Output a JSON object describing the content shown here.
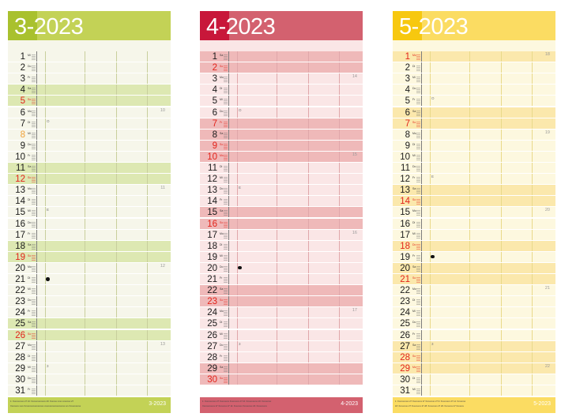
{
  "calendars": [
    {
      "title": "3-2023",
      "footer_label": "3-2023",
      "footer_fine": [
        "1: Xxxxxxxxxxx 27   16: Xxxxxxxxxxxxxx   29: Xxxxxxx xxxx xxxxxxxx 27",
        "Xxxxxxxx xxxx   Xxxxxxxxxxxxxxxxxxx xxxxxxxxxxxxxxxxxxxx xxx Xxxxxxxxxxx"
      ],
      "colors": {
        "header": "#c3d256",
        "accent": "#a9c12e",
        "row": "#f6f6ea",
        "highlight": "#dde8b2",
        "grid": "#c8cf9c"
      },
      "days": [
        {
          "n": "1",
          "a": "Mi",
          "k": "w"
        },
        {
          "n": "2",
          "a": "Do",
          "k": "w"
        },
        {
          "n": "3",
          "a": "Fr",
          "k": "w"
        },
        {
          "n": "4",
          "a": "Sa",
          "k": "hl"
        },
        {
          "n": "5",
          "a": "So",
          "k": "red"
        },
        {
          "n": "6",
          "a": "Mo",
          "k": "w"
        },
        {
          "n": "7",
          "a": "Di",
          "k": "w"
        },
        {
          "n": "8",
          "a": "Mi",
          "k": "orange"
        },
        {
          "n": "9",
          "a": "Do",
          "k": "w"
        },
        {
          "n": "10",
          "a": "Fr",
          "k": "w"
        },
        {
          "n": "11",
          "a": "Sa",
          "k": "hl"
        },
        {
          "n": "12",
          "a": "So",
          "k": "red"
        },
        {
          "n": "13",
          "a": "Mo",
          "k": "w"
        },
        {
          "n": "14",
          "a": "Di",
          "k": "w"
        },
        {
          "n": "15",
          "a": "Mi",
          "k": "w"
        },
        {
          "n": "16",
          "a": "Do",
          "k": "w"
        },
        {
          "n": "17",
          "a": "Fr",
          "k": "w"
        },
        {
          "n": "18",
          "a": "Sa",
          "k": "hl"
        },
        {
          "n": "19",
          "a": "So",
          "k": "red"
        },
        {
          "n": "20",
          "a": "Mo",
          "k": "w"
        },
        {
          "n": "21",
          "a": "Di",
          "k": "w"
        },
        {
          "n": "22",
          "a": "Mi",
          "k": "w"
        },
        {
          "n": "23",
          "a": "Do",
          "k": "w"
        },
        {
          "n": "24",
          "a": "Fr",
          "k": "w"
        },
        {
          "n": "25",
          "a": "Sa",
          "k": "hl"
        },
        {
          "n": "26",
          "a": "So",
          "k": "red"
        },
        {
          "n": "27",
          "a": "Mo",
          "k": "w"
        },
        {
          "n": "28",
          "a": "Di",
          "k": "w"
        },
        {
          "n": "29",
          "a": "Mi",
          "k": "w"
        },
        {
          "n": "30",
          "a": "Do",
          "k": "w"
        },
        {
          "n": "31",
          "a": "Fr",
          "k": "w"
        }
      ],
      "week_nums": [
        {
          "day": 6,
          "text": "10"
        },
        {
          "day": 13,
          "text": "11"
        },
        {
          "day": 20,
          "text": "12"
        },
        {
          "day": 27,
          "text": "13"
        }
      ],
      "notes": [
        {
          "day": 7,
          "text": "O"
        },
        {
          "day": 15,
          "text": "E"
        },
        {
          "day": 29,
          "text": "3"
        }
      ],
      "dot_day": 21
    },
    {
      "title": "4-2023",
      "footer_label": "4-2023",
      "footer_fine": [
        "1: Xxxxxxxxxxx 27 Xxxxxxxxx   Xxxxxxxxx 27   16: Xxxxxxxxxxx   20: Xxxxxxxxx",
        "Xxxxxxxxxxxx 27  Xxxxxxxx 27  14: Xxxxxxxx  Xxxxxxxxx   23: Xxxxxxxxxx"
      ],
      "colors": {
        "header": "#d3616f",
        "accent": "#c8173a",
        "row": "#fae6e6",
        "highlight": "#efb9b9",
        "grid": "#e0a7aa"
      },
      "days": [
        {
          "n": "1",
          "a": "Sa",
          "k": "hl"
        },
        {
          "n": "2",
          "a": "So",
          "k": "red"
        },
        {
          "n": "3",
          "a": "Mo",
          "k": "w"
        },
        {
          "n": "4",
          "a": "Di",
          "k": "w"
        },
        {
          "n": "5",
          "a": "Mi",
          "k": "w"
        },
        {
          "n": "6",
          "a": "Do",
          "k": "w"
        },
        {
          "n": "7",
          "a": "Fr",
          "k": "red"
        },
        {
          "n": "8",
          "a": "Sa",
          "k": "hl"
        },
        {
          "n": "9",
          "a": "So",
          "k": "red"
        },
        {
          "n": "10",
          "a": "Mo",
          "k": "red"
        },
        {
          "n": "11",
          "a": "Di",
          "k": "w"
        },
        {
          "n": "12",
          "a": "Mi",
          "k": "w"
        },
        {
          "n": "13",
          "a": "Do",
          "k": "w"
        },
        {
          "n": "14",
          "a": "Fr",
          "k": "w"
        },
        {
          "n": "15",
          "a": "Sa",
          "k": "hl"
        },
        {
          "n": "16",
          "a": "So",
          "k": "red"
        },
        {
          "n": "17",
          "a": "Mo",
          "k": "w"
        },
        {
          "n": "18",
          "a": "Di",
          "k": "w"
        },
        {
          "n": "19",
          "a": "Mi",
          "k": "w"
        },
        {
          "n": "20",
          "a": "Do",
          "k": "w"
        },
        {
          "n": "21",
          "a": "Fr",
          "k": "w"
        },
        {
          "n": "22",
          "a": "Sa",
          "k": "hl"
        },
        {
          "n": "23",
          "a": "So",
          "k": "red"
        },
        {
          "n": "24",
          "a": "Mo",
          "k": "w"
        },
        {
          "n": "25",
          "a": "Di",
          "k": "w"
        },
        {
          "n": "26",
          "a": "Mi",
          "k": "w"
        },
        {
          "n": "27",
          "a": "Do",
          "k": "w"
        },
        {
          "n": "28",
          "a": "Fr",
          "k": "w"
        },
        {
          "n": "29",
          "a": "Sa",
          "k": "hl"
        },
        {
          "n": "30",
          "a": "So",
          "k": "red"
        }
      ],
      "week_nums": [
        {
          "day": 3,
          "text": "14"
        },
        {
          "day": 10,
          "text": "15"
        },
        {
          "day": 17,
          "text": "16"
        },
        {
          "day": 24,
          "text": "17"
        }
      ],
      "notes": [
        {
          "day": 6,
          "text": "O"
        },
        {
          "day": 13,
          "text": "E"
        },
        {
          "day": 27,
          "text": "3"
        }
      ],
      "dot_day": 20
    },
    {
      "title": "5-2023",
      "footer_label": "5-2023",
      "footer_fine": [
        "1: Xxxxxxxxxxx 27  Xxxxxxxxx 27  Xxxxxxxxx 27   9: Xxxxxxxxx 27   14: Xxxxxxxx",
        "18: Xxxxxxxxx 27  Xxxxxxxxx 27  28: Xxxxxxxxx 27  29: Xxxxxxxx 27  Xxxxxxx"
      ],
      "colors": {
        "header": "#fbdc62",
        "accent": "#f7c80f",
        "row": "#fdf8df",
        "highlight": "#fbe8ac",
        "grid": "#e9d98a"
      },
      "days": [
        {
          "n": "1",
          "a": "Mo",
          "k": "red"
        },
        {
          "n": "2",
          "a": "Di",
          "k": "w"
        },
        {
          "n": "3",
          "a": "Mi",
          "k": "w"
        },
        {
          "n": "4",
          "a": "Do",
          "k": "w"
        },
        {
          "n": "5",
          "a": "Fr",
          "k": "w"
        },
        {
          "n": "6",
          "a": "Sa",
          "k": "hl"
        },
        {
          "n": "7",
          "a": "So",
          "k": "red"
        },
        {
          "n": "8",
          "a": "Mo",
          "k": "w"
        },
        {
          "n": "9",
          "a": "Di",
          "k": "w"
        },
        {
          "n": "10",
          "a": "Mi",
          "k": "w"
        },
        {
          "n": "11",
          "a": "Do",
          "k": "w"
        },
        {
          "n": "12",
          "a": "Fr",
          "k": "w"
        },
        {
          "n": "13",
          "a": "Sa",
          "k": "hl"
        },
        {
          "n": "14",
          "a": "So",
          "k": "red"
        },
        {
          "n": "15",
          "a": "Mo",
          "k": "w"
        },
        {
          "n": "16",
          "a": "Di",
          "k": "w"
        },
        {
          "n": "17",
          "a": "Mi",
          "k": "w"
        },
        {
          "n": "18",
          "a": "Do",
          "k": "red"
        },
        {
          "n": "19",
          "a": "Fr",
          "k": "w"
        },
        {
          "n": "20",
          "a": "Sa",
          "k": "hl"
        },
        {
          "n": "21",
          "a": "So",
          "k": "red"
        },
        {
          "n": "22",
          "a": "Mo",
          "k": "w"
        },
        {
          "n": "23",
          "a": "Di",
          "k": "w"
        },
        {
          "n": "24",
          "a": "Mi",
          "k": "w"
        },
        {
          "n": "25",
          "a": "Do",
          "k": "w"
        },
        {
          "n": "26",
          "a": "Fr",
          "k": "w"
        },
        {
          "n": "27",
          "a": "Sa",
          "k": "hl"
        },
        {
          "n": "28",
          "a": "So",
          "k": "red"
        },
        {
          "n": "29",
          "a": "Mo",
          "k": "red"
        },
        {
          "n": "30",
          "a": "Di",
          "k": "w"
        },
        {
          "n": "31",
          "a": "Mi",
          "k": "w"
        }
      ],
      "week_nums": [
        {
          "day": 1,
          "text": "18"
        },
        {
          "day": 8,
          "text": "19"
        },
        {
          "day": 15,
          "text": "20"
        },
        {
          "day": 22,
          "text": "21"
        },
        {
          "day": 29,
          "text": "22"
        }
      ],
      "notes": [
        {
          "day": 5,
          "text": "O"
        },
        {
          "day": 12,
          "text": "E"
        },
        {
          "day": 27,
          "text": "3"
        }
      ],
      "dot_day": 19
    }
  ]
}
